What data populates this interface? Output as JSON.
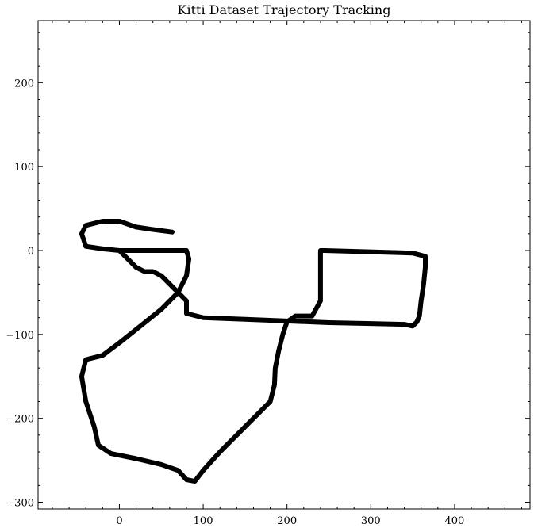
{
  "chart_data": {
    "type": "line",
    "title": "Kitti Dataset Trajectory Tracking",
    "xlabel": "",
    "ylabel": "",
    "xlim": [
      -97,
      490
    ],
    "ylim": [
      -308,
      274
    ],
    "xticks": [
      0,
      100,
      200,
      300,
      400
    ],
    "xtick_labels": [
      "0",
      "100",
      "200",
      "300",
      "400"
    ],
    "yticks": [
      -300,
      -200,
      -100,
      0,
      100,
      200
    ],
    "ytick_labels": [
      "−300",
      "−200",
      "−100",
      "0",
      "100",
      "200"
    ],
    "grid": false,
    "legend": "none",
    "series": [
      {
        "color": "#000000",
        "x": [
          0,
          40,
          80,
          83,
          80,
          70,
          50,
          25,
          0,
          -20,
          -40,
          -45,
          -40,
          -30,
          -25,
          -10,
          20,
          50,
          70,
          80,
          90,
          100,
          120,
          140,
          160,
          180,
          185,
          186,
          190,
          195,
          200,
          210,
          230,
          240,
          240,
          240,
          245,
          350,
          365,
          365,
          363,
          360,
          358,
          355,
          350,
          340,
          300,
          250,
          200,
          150,
          100,
          80,
          80,
          70,
          60,
          50,
          40,
          30,
          20,
          10,
          0,
          -20,
          -40,
          -45,
          -40,
          -20,
          0,
          20,
          40,
          63
        ],
        "y": [
          0,
          0,
          0,
          -10,
          -30,
          -50,
          -70,
          -90,
          -110,
          -125,
          -130,
          -150,
          -180,
          -210,
          -232,
          -242,
          -248,
          -255,
          -262,
          -273,
          -275,
          -262,
          -240,
          -220,
          -200,
          -180,
          -160,
          -140,
          -120,
          -100,
          -85,
          -78,
          -78,
          -60,
          -20,
          0,
          0,
          -3,
          -7,
          -20,
          -40,
          -60,
          -78,
          -85,
          -90,
          -88,
          -87,
          -86,
          -84,
          -82,
          -80,
          -75,
          -60,
          -50,
          -40,
          -30,
          -25,
          -25,
          -20,
          -10,
          0,
          2,
          5,
          20,
          30,
          35,
          35,
          28,
          25,
          22
        ]
      }
    ]
  }
}
